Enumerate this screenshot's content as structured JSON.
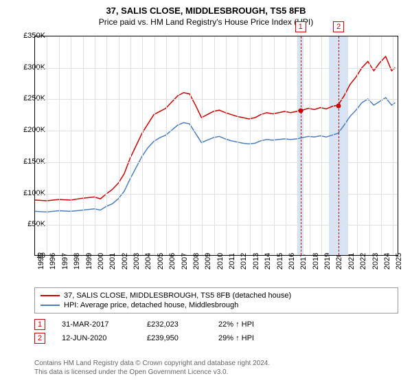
{
  "title": "37, SALIS CLOSE, MIDDLESBROUGH, TS5 8FB",
  "subtitle": "Price paid vs. HM Land Registry's House Price Index (HPI)",
  "chart": {
    "type": "line",
    "xlim": [
      1995,
      2025.5
    ],
    "ylim": [
      0,
      350000
    ],
    "ytick_step": 50000,
    "yticks_labels": [
      "£0",
      "£50K",
      "£100K",
      "£150K",
      "£200K",
      "£250K",
      "£300K",
      "£350K"
    ],
    "xticks": [
      1995,
      1996,
      1997,
      1998,
      1999,
      2000,
      2001,
      2002,
      2003,
      2004,
      2005,
      2006,
      2007,
      2008,
      2009,
      2010,
      2011,
      2012,
      2013,
      2014,
      2015,
      2016,
      2017,
      2018,
      2019,
      2020,
      2021,
      2022,
      2023,
      2024,
      2025
    ],
    "grid_color": "#e0e0e0",
    "background_color": "#ffffff",
    "series": [
      {
        "name": "37, SALIS CLOSE, MIDDLESBROUGH, TS5 8FB (detached house)",
        "color": "#cc0000",
        "width": 1.5,
        "data": [
          [
            1995,
            88000
          ],
          [
            1996,
            87000
          ],
          [
            1997,
            89000
          ],
          [
            1998,
            88000
          ],
          [
            1999,
            91000
          ],
          [
            2000,
            93000
          ],
          [
            2000.5,
            90000
          ],
          [
            2001,
            98000
          ],
          [
            2001.5,
            105000
          ],
          [
            2002,
            115000
          ],
          [
            2002.5,
            130000
          ],
          [
            2003,
            155000
          ],
          [
            2003.5,
            175000
          ],
          [
            2004,
            195000
          ],
          [
            2004.5,
            210000
          ],
          [
            2005,
            225000
          ],
          [
            2005.5,
            230000
          ],
          [
            2006,
            235000
          ],
          [
            2006.5,
            245000
          ],
          [
            2007,
            255000
          ],
          [
            2007.5,
            260000
          ],
          [
            2008,
            258000
          ],
          [
            2008.5,
            240000
          ],
          [
            2009,
            220000
          ],
          [
            2009.5,
            225000
          ],
          [
            2010,
            230000
          ],
          [
            2010.5,
            232000
          ],
          [
            2011,
            228000
          ],
          [
            2011.5,
            225000
          ],
          [
            2012,
            222000
          ],
          [
            2012.5,
            220000
          ],
          [
            2013,
            218000
          ],
          [
            2013.5,
            220000
          ],
          [
            2014,
            225000
          ],
          [
            2014.5,
            228000
          ],
          [
            2015,
            226000
          ],
          [
            2015.5,
            228000
          ],
          [
            2016,
            230000
          ],
          [
            2016.5,
            228000
          ],
          [
            2017,
            230000
          ],
          [
            2017.25,
            232023
          ],
          [
            2017.5,
            232000
          ],
          [
            2018,
            235000
          ],
          [
            2018.5,
            233000
          ],
          [
            2019,
            236000
          ],
          [
            2019.5,
            234000
          ],
          [
            2020,
            238000
          ],
          [
            2020.45,
            239950
          ],
          [
            2020.5,
            240000
          ],
          [
            2021,
            255000
          ],
          [
            2021.5,
            273000
          ],
          [
            2022,
            285000
          ],
          [
            2022.5,
            300000
          ],
          [
            2023,
            310000
          ],
          [
            2023.5,
            295000
          ],
          [
            2024,
            308000
          ],
          [
            2024.5,
            318000
          ],
          [
            2025,
            295000
          ],
          [
            2025.3,
            300000
          ]
        ]
      },
      {
        "name": "HPI: Average price, detached house, Middlesbrough",
        "color": "#4a7ebb",
        "width": 1.5,
        "data": [
          [
            1995,
            70000
          ],
          [
            1996,
            69000
          ],
          [
            1997,
            71000
          ],
          [
            1998,
            70000
          ],
          [
            1999,
            72000
          ],
          [
            2000,
            74000
          ],
          [
            2000.5,
            72000
          ],
          [
            2001,
            78000
          ],
          [
            2001.5,
            82000
          ],
          [
            2002,
            90000
          ],
          [
            2002.5,
            102000
          ],
          [
            2003,
            122000
          ],
          [
            2003.5,
            140000
          ],
          [
            2004,
            158000
          ],
          [
            2004.5,
            172000
          ],
          [
            2005,
            182000
          ],
          [
            2005.5,
            188000
          ],
          [
            2006,
            192000
          ],
          [
            2006.5,
            200000
          ],
          [
            2007,
            208000
          ],
          [
            2007.5,
            212000
          ],
          [
            2008,
            210000
          ],
          [
            2008.5,
            195000
          ],
          [
            2009,
            180000
          ],
          [
            2009.5,
            184000
          ],
          [
            2010,
            188000
          ],
          [
            2010.5,
            190000
          ],
          [
            2011,
            186000
          ],
          [
            2011.5,
            183000
          ],
          [
            2012,
            181000
          ],
          [
            2012.5,
            179000
          ],
          [
            2013,
            178000
          ],
          [
            2013.5,
            179000
          ],
          [
            2014,
            183000
          ],
          [
            2014.5,
            185000
          ],
          [
            2015,
            184000
          ],
          [
            2015.5,
            185000
          ],
          [
            2016,
            186000
          ],
          [
            2016.5,
            185000
          ],
          [
            2017,
            186000
          ],
          [
            2017.5,
            188000
          ],
          [
            2018,
            190000
          ],
          [
            2018.5,
            189000
          ],
          [
            2019,
            191000
          ],
          [
            2019.5,
            189000
          ],
          [
            2020,
            192000
          ],
          [
            2020.5,
            195000
          ],
          [
            2021,
            208000
          ],
          [
            2021.5,
            222000
          ],
          [
            2022,
            232000
          ],
          [
            2022.5,
            244000
          ],
          [
            2023,
            250000
          ],
          [
            2023.5,
            240000
          ],
          [
            2024,
            246000
          ],
          [
            2024.5,
            252000
          ],
          [
            2025,
            240000
          ],
          [
            2025.3,
            244000
          ]
        ]
      }
    ],
    "markers": [
      {
        "id": "1",
        "x": 2017.25,
        "y": 232023,
        "color": "#cc0000",
        "band_width": 0.25
      },
      {
        "id": "2",
        "x": 2020.45,
        "y": 239950,
        "color": "#cc0000",
        "band_width": 0.8
      }
    ]
  },
  "legend": {
    "items": [
      {
        "color": "#cc0000",
        "label": "37, SALIS CLOSE, MIDDLESBROUGH, TS5 8FB (detached house)"
      },
      {
        "color": "#4a7ebb",
        "label": "HPI: Average price, detached house, Middlesbrough"
      }
    ]
  },
  "sales": [
    {
      "id": "1",
      "color": "#cc0000",
      "date": "31-MAR-2017",
      "price": "£232,023",
      "pct": "22% ↑ HPI"
    },
    {
      "id": "2",
      "color": "#cc0000",
      "date": "12-JUN-2020",
      "price": "£239,950",
      "pct": "29% ↑ HPI"
    }
  ],
  "footer": {
    "line1": "Contains HM Land Registry data © Crown copyright and database right 2024.",
    "line2": "This data is licensed under the Open Government Licence v3.0."
  }
}
